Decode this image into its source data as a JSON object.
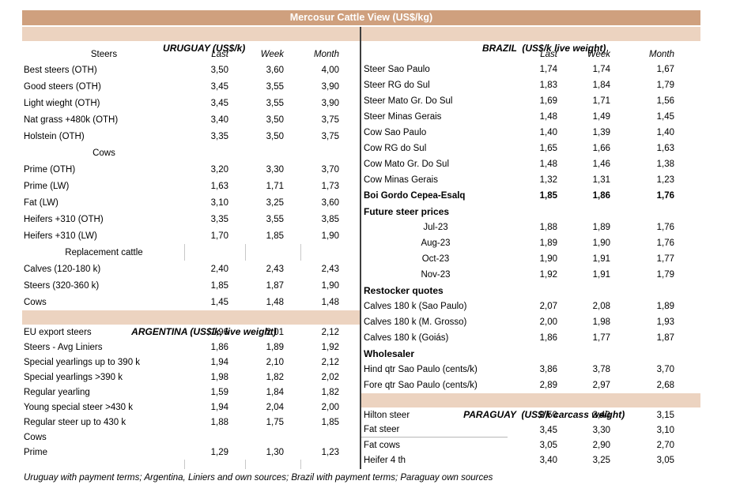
{
  "title": "Mercosur Cattle View (US$/kg)",
  "footer": "Uruguay with payment terms; Argentina, Liniers and own sources; Brazil with payment terms; Paraguay own sources",
  "colors": {
    "title_bar_bg": "#CFA07E",
    "title_text": "#FFFFFF",
    "section_bar_bg": "#ECD3C0",
    "divider": "#3F3F3F",
    "tick": "#C8C8C8"
  },
  "uruguay": {
    "header": "URUGUAY (US$/k)",
    "col_header": {
      "label": "Steers",
      "cols": [
        "Last",
        "Week",
        "Month"
      ]
    },
    "rows": [
      {
        "t": "d",
        "label": "Best steers (OTH)",
        "values": [
          "3,50",
          "3,60",
          "4,00"
        ]
      },
      {
        "t": "d",
        "label": "Good steers (OTH)",
        "values": [
          "3,45",
          "3,55",
          "3,90"
        ]
      },
      {
        "t": "d",
        "label": "Light wieght (OTH)",
        "values": [
          "3,45",
          "3,55",
          "3,90"
        ]
      },
      {
        "t": "d",
        "label": "Nat grass +480k (OTH)",
        "values": [
          "3,40",
          "3,50",
          "3,75"
        ]
      },
      {
        "t": "d",
        "label": "Holstein (OTH)",
        "values": [
          "3,35",
          "3,50",
          "3,75"
        ]
      },
      {
        "t": "c",
        "label": "Cows"
      },
      {
        "t": "d",
        "label": "Prime (OTH)",
        "values": [
          "3,20",
          "3,30",
          "3,70"
        ]
      },
      {
        "t": "d",
        "label": "Prime (LW)",
        "values": [
          "1,63",
          "1,71",
          "1,73"
        ]
      },
      {
        "t": "d",
        "label": "Fat (LW)",
        "values": [
          "3,10",
          "3,25",
          "3,60"
        ]
      },
      {
        "t": "d",
        "label": "Heifers +310 (OTH)",
        "values": [
          "3,35",
          "3,55",
          "3,85"
        ]
      },
      {
        "t": "d",
        "label": "Heifers +310 (LW)",
        "values": [
          "1,70",
          "1,85",
          "1,90"
        ]
      },
      {
        "t": "c",
        "label": "Replacement cattle",
        "ticks": true
      },
      {
        "t": "d",
        "label": "Calves (120-180 k)",
        "values": [
          "2,40",
          "2,43",
          "2,43"
        ]
      },
      {
        "t": "d",
        "label": "Steers (320-360 k)",
        "values": [
          "1,85",
          "1,87",
          "1,90"
        ]
      },
      {
        "t": "d",
        "label": "Cows",
        "values": [
          "1,45",
          "1,48",
          "1,48"
        ]
      }
    ]
  },
  "argentina": {
    "header": "ARGENTINA (US$/k, live weight)",
    "rows": [
      {
        "t": "d",
        "label": "EU export steers",
        "values": [
          "1,96",
          "2,01",
          "2,12"
        ]
      },
      {
        "t": "d",
        "label": "Steers - Avg Liniers",
        "values": [
          "1,86",
          "1,89",
          "1,92"
        ]
      },
      {
        "t": "d",
        "label": "Special yearlings up to 390 k",
        "values": [
          "1,94",
          "2,10",
          "2,12"
        ]
      },
      {
        "t": "d",
        "label": "Special yearlings >390 k",
        "values": [
          "1,98",
          "1,82",
          "2,02"
        ]
      },
      {
        "t": "d",
        "label": "Regular yearling",
        "values": [
          "1,59",
          "1,84",
          "1,82"
        ]
      },
      {
        "t": "d",
        "label": "Young special steer >430 k",
        "values": [
          "1,94",
          "2,04",
          "2,00"
        ]
      },
      {
        "t": "d",
        "label": "Regular steer up to 430 k",
        "values": [
          "1,88",
          "1,75",
          "1,85"
        ]
      },
      {
        "t": "d",
        "label": "Cows",
        "values": [
          "",
          "",
          ""
        ]
      },
      {
        "t": "d",
        "label": "Prime",
        "values": [
          "1,29",
          "1,30",
          "1,23"
        ]
      },
      {
        "t": "k",
        "label": "",
        "ticks": true
      }
    ]
  },
  "brazil": {
    "header": "BRAZIL  (US$/k live weight)",
    "col_header": {
      "label": "",
      "cols": [
        "Last",
        "Week",
        "Month"
      ]
    },
    "rows": [
      {
        "t": "d",
        "label": "Steer Sao Paulo",
        "values": [
          "1,74",
          "1,74",
          "1,67"
        ]
      },
      {
        "t": "d",
        "label": "Steer RG do Sul",
        "values": [
          "1,83",
          "1,84",
          "1,79"
        ]
      },
      {
        "t": "d",
        "label": "Steer Mato Gr. Do Sul",
        "values": [
          "1,69",
          "1,71",
          "1,56"
        ]
      },
      {
        "t": "d",
        "label": "Steer Minas Gerais",
        "values": [
          "1,48",
          "1,49",
          "1,45"
        ]
      },
      {
        "t": "d",
        "label": "Cow Sao Paulo",
        "values": [
          "1,40",
          "1,39",
          "1,40"
        ]
      },
      {
        "t": "d",
        "label": "Cow RG do Sul",
        "values": [
          "1,65",
          "1,66",
          "1,63"
        ]
      },
      {
        "t": "d",
        "label": "Cow Mato Gr. Do Sul",
        "values": [
          "1,48",
          "1,46",
          "1,38"
        ]
      },
      {
        "t": "d",
        "label": "Cow Minas Gerais",
        "values": [
          "1,32",
          "1,31",
          "1,23"
        ]
      },
      {
        "t": "B",
        "label": "Boi Gordo Cepea-Esalq",
        "values": [
          "1,85",
          "1,86",
          "1,76"
        ]
      },
      {
        "t": "b",
        "label": "Future steer prices"
      },
      {
        "t": "m",
        "label": "Jul-23",
        "values": [
          "1,88",
          "1,89",
          "1,76"
        ]
      },
      {
        "t": "m",
        "label": "Aug-23",
        "values": [
          "1,89",
          "1,90",
          "1,76"
        ]
      },
      {
        "t": "m",
        "label": "Oct-23",
        "values": [
          "1,90",
          "1,91",
          "1,77"
        ]
      },
      {
        "t": "m",
        "label": "Nov-23",
        "values": [
          "1,92",
          "1,91",
          "1,79"
        ]
      },
      {
        "t": "b",
        "label": "Restocker quotes"
      },
      {
        "t": "d",
        "label": "Calves 180 k (Sao Paulo)",
        "values": [
          "2,07",
          "2,08",
          "1,89"
        ]
      },
      {
        "t": "d",
        "label": "Calves 180 k (M. Grosso)",
        "values": [
          "2,00",
          "1,98",
          "1,93"
        ]
      },
      {
        "t": "d",
        "label": "Calves 180 k (Goiás)",
        "values": [
          "1,86",
          "1,77",
          "1,87"
        ]
      },
      {
        "t": "b",
        "label": "Wholesaler"
      },
      {
        "t": "d",
        "label": "Hind qtr Sao Paulo (cents/k)",
        "values": [
          "3,86",
          "3,78",
          "3,70"
        ]
      },
      {
        "t": "d",
        "label": "Fore qtr Sao Paulo (cents/k)",
        "values": [
          "2,89",
          "2,97",
          "2,68"
        ]
      }
    ]
  },
  "paraguay": {
    "header": "PARAGUAY  (US$/k carcass weight)",
    "rows": [
      {
        "t": "d",
        "label": "Hilton steer",
        "values": [
          "3,50",
          "3,40",
          "3,15"
        ]
      },
      {
        "t": "u",
        "label": "Fat steer",
        "values": [
          "3,45",
          "3,30",
          "3,10"
        ]
      },
      {
        "t": "d",
        "label": "Fat cows",
        "values": [
          "3,05",
          "2,90",
          "2,70"
        ]
      },
      {
        "t": "d",
        "label": "Heifer 4 th",
        "values": [
          "3,40",
          "3,25",
          "3,05"
        ]
      }
    ]
  }
}
